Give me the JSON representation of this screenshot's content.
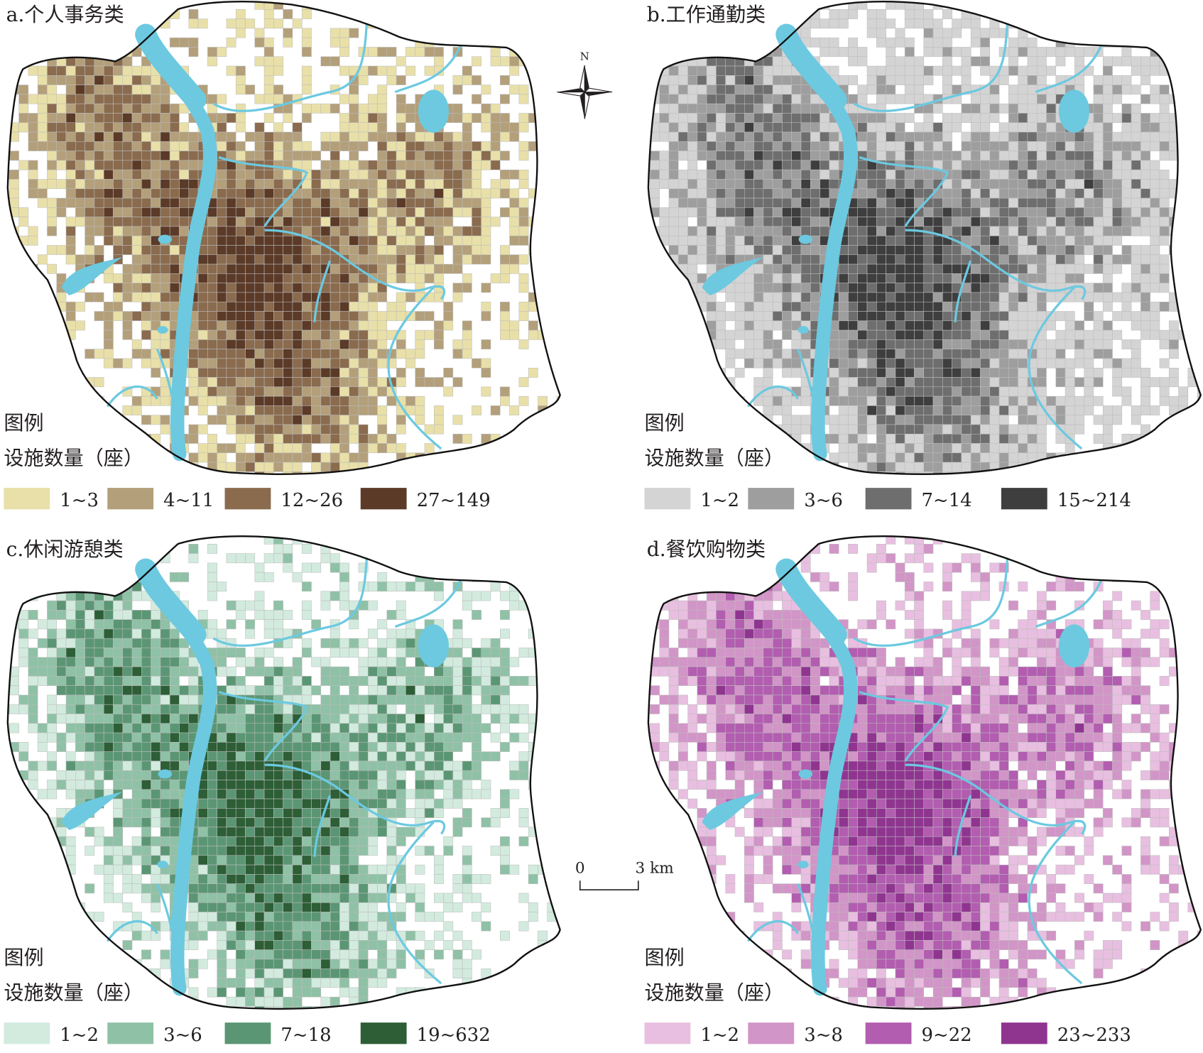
{
  "panels": [
    {
      "title": "a.个人事务类",
      "legend_title": "图例",
      "legend_subtitle": "设施数量（座）",
      "classes": [
        {
          "label": "1~3",
          "color": "#e8e0a8"
        },
        {
          "label": "4~11",
          "color": "#b39f7a"
        },
        {
          "label": "12~26",
          "color": "#8a6b4e"
        },
        {
          "label": "27~149",
          "color": "#5b3a28"
        }
      ]
    },
    {
      "title": "b.工作通勤类",
      "legend_title": "图例",
      "legend_subtitle": "设施数量（座）",
      "classes": [
        {
          "label": "1~2",
          "color": "#d4d4d4"
        },
        {
          "label": "3~6",
          "color": "#9e9e9e"
        },
        {
          "label": "7~14",
          "color": "#6e6e6e"
        },
        {
          "label": "15~214",
          "color": "#3e3e3e"
        }
      ]
    },
    {
      "title": "c.休闲游憩类",
      "legend_title": "图例",
      "legend_subtitle": "设施数量（座）",
      "classes": [
        {
          "label": "1~2",
          "color": "#d2ebde"
        },
        {
          "label": "3~6",
          "color": "#8fc1a6"
        },
        {
          "label": "7~18",
          "color": "#5b9674"
        },
        {
          "label": "19~632",
          "color": "#2d5e36"
        }
      ]
    },
    {
      "title": "d.餐饮购物类",
      "legend_title": "图例",
      "legend_subtitle": "设施数量（座）",
      "classes": [
        {
          "label": "1~2",
          "color": "#e8bfe0"
        },
        {
          "label": "3~8",
          "color": "#d295c7"
        },
        {
          "label": "9~22",
          "color": "#b25db0"
        },
        {
          "label": "23~233",
          "color": "#8f3590"
        }
      ]
    }
  ],
  "north_label": "N",
  "scale_bar": {
    "start": "0",
    "end": "3 km"
  }
}
